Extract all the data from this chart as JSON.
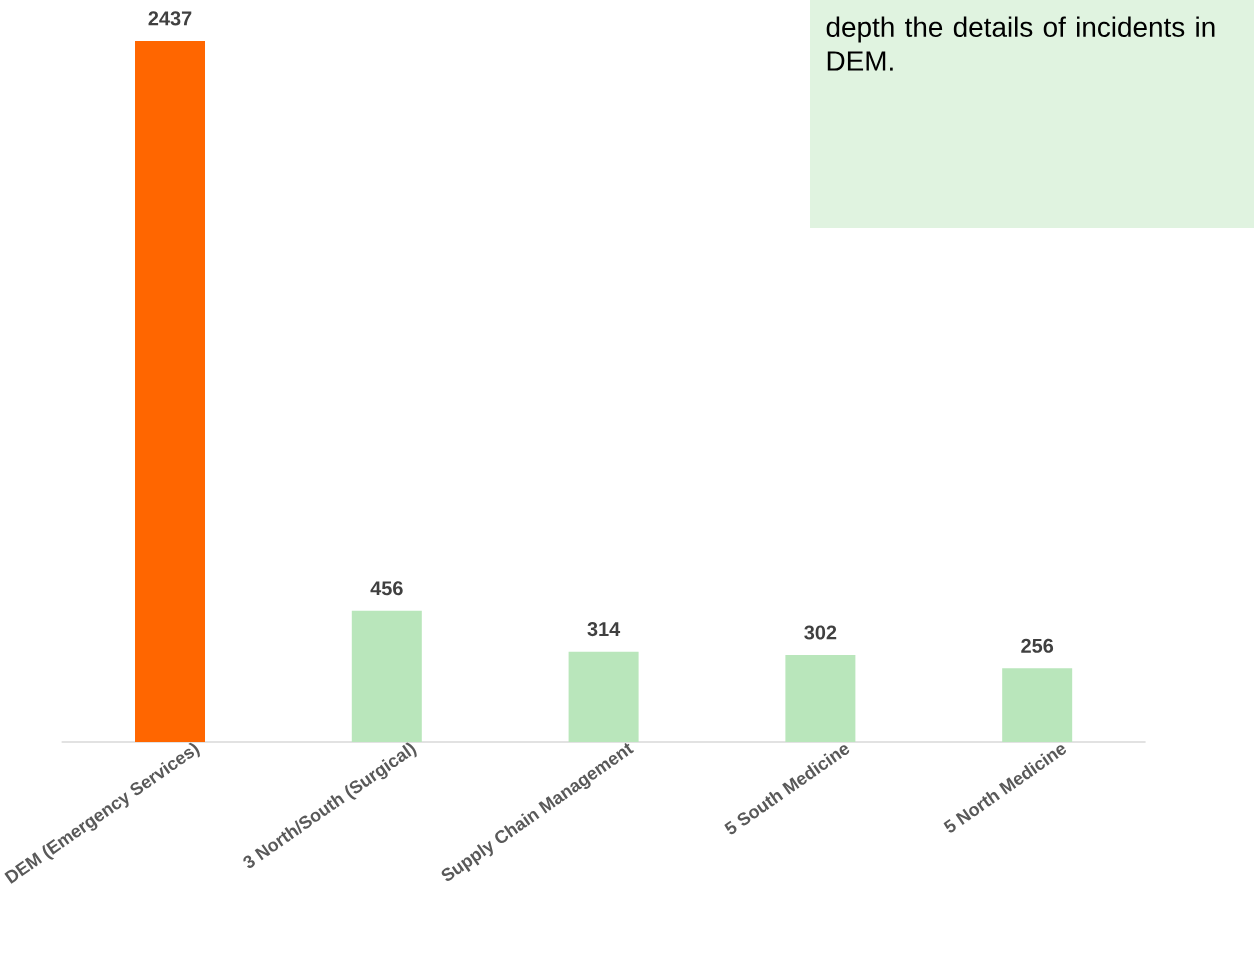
{
  "chart_data": {
    "type": "bar",
    "categories": [
      "DEM (Emergency Services)",
      "3 North/South (Surgical)",
      "Supply Chain Management",
      "5 South Medicine",
      "5 North Medicine"
    ],
    "values": [
      2437,
      456,
      314,
      302,
      256
    ],
    "colors": [
      "#ff6600",
      "#b9e6bb",
      "#b9e6bb",
      "#b9e6bb",
      "#b9e6bb"
    ],
    "data_labels": true,
    "grid": false,
    "annotations": [
      "depth the details of incidents in DEM."
    ]
  }
}
